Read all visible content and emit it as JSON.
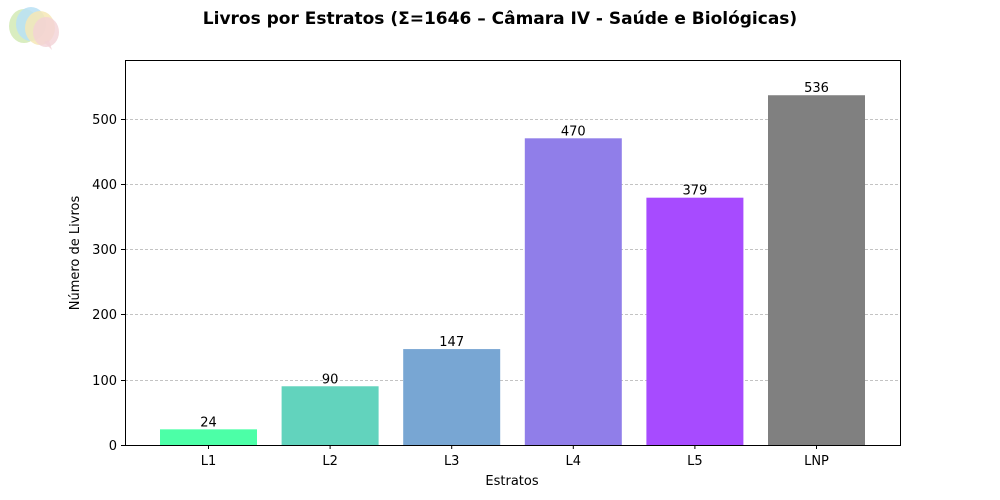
{
  "chart_data": {
    "type": "bar",
    "title": "Livros por Estratos (Σ=1646 – Câmara IV - Saúde e Biológicas)",
    "xlabel": "Estratos",
    "ylabel": "Número de Livros",
    "categories": [
      "L1",
      "L2",
      "L3",
      "L4",
      "L5",
      "LNP"
    ],
    "values": [
      24,
      90,
      147,
      470,
      379,
      536
    ],
    "colors": [
      "#4cffa7",
      "#62d3bd",
      "#78a6d3",
      "#907ee9",
      "#a74bff",
      "#808080"
    ],
    "ylim": [
      0,
      590
    ],
    "yticks": [
      0,
      100,
      200,
      300,
      400,
      500
    ],
    "grid": "horizontal dashed",
    "legend": "none"
  },
  "logo": {
    "icon": "speech-bubbles-logo-icon"
  }
}
